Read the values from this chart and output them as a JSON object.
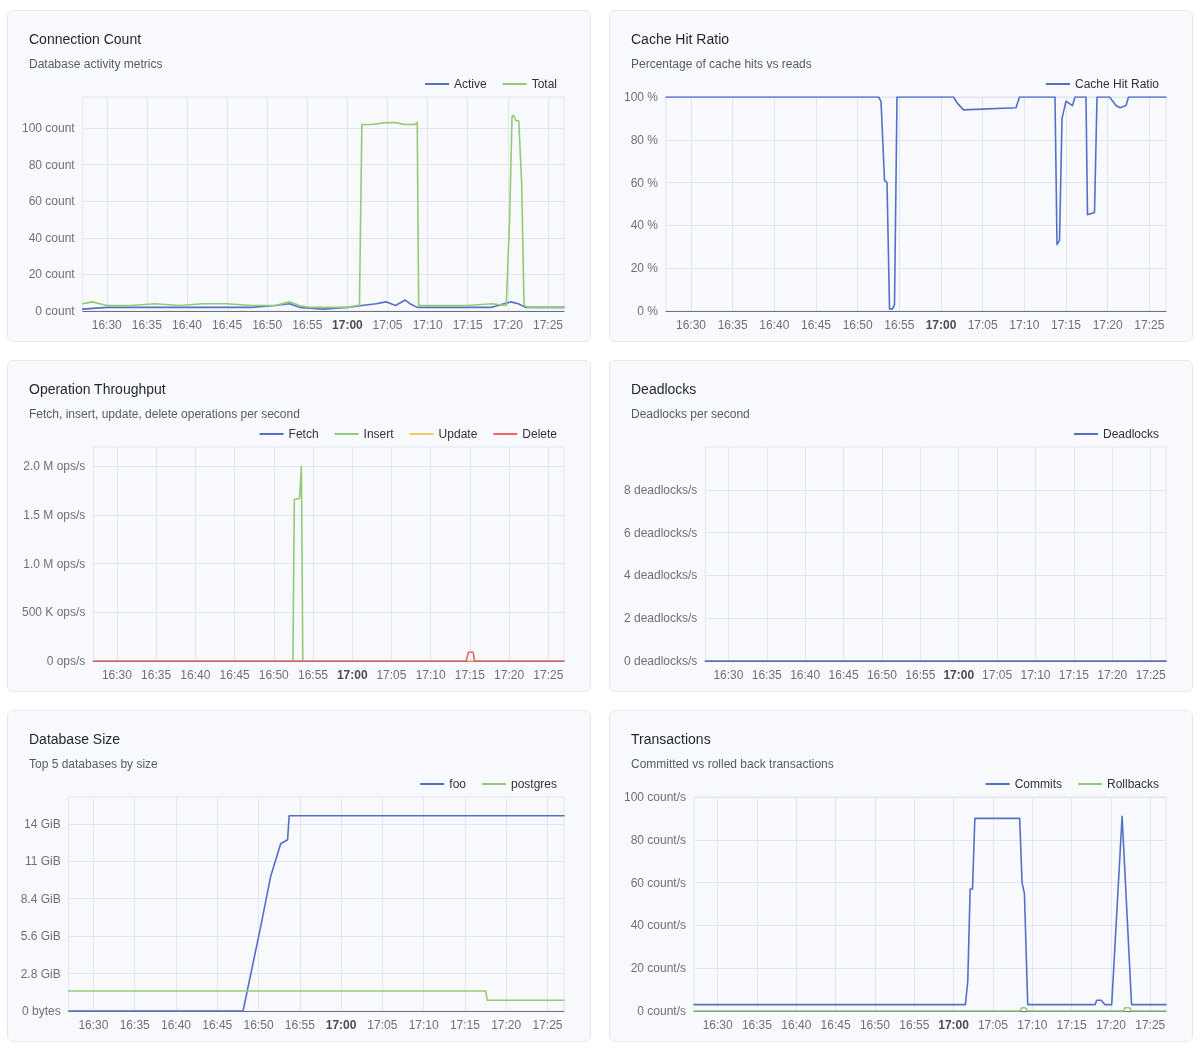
{
  "chart_data": [
    {
      "type": "line",
      "title": "Connection Count",
      "subtitle": "Database activity metrics",
      "legend": "top right",
      "grid": true,
      "xlim": [
        16.45,
        17.45
      ],
      "xticks": [
        {
          "value": 16.5,
          "label": "16:30"
        },
        {
          "value": 16.5833,
          "label": "16:35"
        },
        {
          "value": 16.6667,
          "label": "16:40"
        },
        {
          "value": 16.75,
          "label": "16:45"
        },
        {
          "value": 16.8333,
          "label": "16:50"
        },
        {
          "value": 16.9167,
          "label": "16:55"
        },
        {
          "value": 17,
          "label": "17:00"
        },
        {
          "value": 17.0833,
          "label": "17:05"
        },
        {
          "value": 17.1667,
          "label": "17:10"
        },
        {
          "value": 17.25,
          "label": "17:15"
        },
        {
          "value": 17.3333,
          "label": "17:20"
        },
        {
          "value": 17.4167,
          "label": "17:25"
        }
      ],
      "ylim": [
        0,
        117
      ],
      "yticks": [
        {
          "value": 0,
          "label": "0 count"
        },
        {
          "value": 20,
          "label": "20 count"
        },
        {
          "value": 40,
          "label": "40 count"
        },
        {
          "value": 60,
          "label": "60 count"
        },
        {
          "value": 80,
          "label": "80 count"
        },
        {
          "value": 100,
          "label": "100 count"
        }
      ],
      "series": [
        {
          "name": "Active",
          "color": "#5470c6",
          "x": [
            16.45,
            16.5,
            16.6,
            16.7,
            16.8,
            16.85,
            16.88,
            16.9,
            16.95,
            17.0,
            17.03,
            17.06,
            17.08,
            17.1,
            17.12,
            17.13,
            17.145,
            17.2,
            17.3,
            17.34,
            17.355,
            17.37,
            17.4,
            17.45
          ],
          "values": [
            1,
            2,
            2,
            2,
            2,
            3,
            4,
            2,
            1,
            2,
            3,
            4,
            5,
            3,
            6,
            4,
            2,
            2,
            2,
            5,
            4,
            2,
            2,
            2
          ]
        },
        {
          "name": "Total",
          "color": "#91cc75",
          "x": [
            16.45,
            16.47,
            16.5,
            16.55,
            16.6,
            16.65,
            16.7,
            16.75,
            16.8,
            16.85,
            16.88,
            16.9,
            16.92,
            16.95,
            17.0,
            17.02,
            17.025,
            17.03,
            17.05,
            17.08,
            17.1,
            17.12,
            17.14,
            17.145,
            17.148,
            17.2,
            17.25,
            17.3,
            17.33,
            17.337,
            17.342,
            17.345,
            17.35,
            17.356,
            17.362,
            17.367,
            17.375,
            17.4,
            17.45
          ],
          "values": [
            4,
            5,
            3,
            3,
            4,
            3,
            4,
            4,
            3,
            3,
            5,
            3,
            2,
            2,
            2,
            3,
            3,
            102,
            102,
            103,
            103,
            102,
            102,
            103,
            3,
            3,
            3,
            4,
            3,
            50,
            106,
            107,
            104,
            104,
            70,
            3,
            2,
            2,
            2
          ]
        }
      ]
    },
    {
      "type": "line",
      "title": "Cache Hit Ratio",
      "subtitle": "Percentage of cache hits vs reads",
      "legend": "top right",
      "grid": true,
      "xlim": [
        16.45,
        17.45
      ],
      "xticks": [
        {
          "value": 16.5,
          "label": "16:30"
        },
        {
          "value": 16.5833,
          "label": "16:35"
        },
        {
          "value": 16.6667,
          "label": "16:40"
        },
        {
          "value": 16.75,
          "label": "16:45"
        },
        {
          "value": 16.8333,
          "label": "16:50"
        },
        {
          "value": 16.9167,
          "label": "16:55"
        },
        {
          "value": 17,
          "label": "17:00"
        },
        {
          "value": 17.0833,
          "label": "17:05"
        },
        {
          "value": 17.1667,
          "label": "17:10"
        },
        {
          "value": 17.25,
          "label": "17:15"
        },
        {
          "value": 17.3333,
          "label": "17:20"
        },
        {
          "value": 17.4167,
          "label": "17:25"
        }
      ],
      "ylim": [
        0,
        100
      ],
      "yticks": [
        {
          "value": 0,
          "label": "0 %"
        },
        {
          "value": 20,
          "label": "20 %"
        },
        {
          "value": 40,
          "label": "40 %"
        },
        {
          "value": 60,
          "label": "60 %"
        },
        {
          "value": 80,
          "label": "80 %"
        },
        {
          "value": 100,
          "label": "100 %"
        }
      ],
      "series": [
        {
          "name": "Cache Hit Ratio",
          "color": "#5470c6",
          "x": [
            16.45,
            16.875,
            16.88,
            16.887,
            16.892,
            16.897,
            16.903,
            16.907,
            16.912,
            17.025,
            17.033,
            17.045,
            17.15,
            17.157,
            17.228,
            17.232,
            17.237,
            17.242,
            17.25,
            17.263,
            17.268,
            17.29,
            17.293,
            17.307,
            17.312,
            17.337,
            17.35,
            17.358,
            17.37,
            17.375,
            17.45
          ],
          "values": [
            100,
            100,
            98,
            61,
            60,
            1,
            1,
            3,
            100,
            100,
            97,
            94,
            95,
            100,
            100,
            31,
            33,
            90,
            98,
            96,
            100,
            100,
            45,
            46,
            100,
            100,
            96,
            95,
            96,
            100,
            100
          ]
        }
      ]
    },
    {
      "type": "line",
      "title": "Operation Throughput",
      "subtitle": "Fetch, insert, update, delete operations per second",
      "legend": "top right",
      "grid": true,
      "xlim": [
        16.45,
        17.45
      ],
      "xticks": [
        {
          "value": 16.5,
          "label": "16:30"
        },
        {
          "value": 16.5833,
          "label": "16:35"
        },
        {
          "value": 16.6667,
          "label": "16:40"
        },
        {
          "value": 16.75,
          "label": "16:45"
        },
        {
          "value": 16.8333,
          "label": "16:50"
        },
        {
          "value": 16.9167,
          "label": "16:55"
        },
        {
          "value": 17,
          "label": "17:00"
        },
        {
          "value": 17.0833,
          "label": "17:05"
        },
        {
          "value": 17.1667,
          "label": "17:10"
        },
        {
          "value": 17.25,
          "label": "17:15"
        },
        {
          "value": 17.3333,
          "label": "17:20"
        },
        {
          "value": 17.4167,
          "label": "17:25"
        }
      ],
      "ylim": [
        0,
        2200000
      ],
      "yticks": [
        {
          "value": 0,
          "label": "0 ops/s"
        },
        {
          "value": 500000,
          "label": "500 K ops/s"
        },
        {
          "value": 1000000,
          "label": "1.0 M ops/s"
        },
        {
          "value": 1500000,
          "label": "1.5 M ops/s"
        },
        {
          "value": 2000000,
          "label": "2.0 M ops/s"
        }
      ],
      "series": [
        {
          "name": "Fetch",
          "color": "#5470c6"
        },
        {
          "name": "Insert",
          "color": "#91cc75",
          "x": [
            16.874,
            16.877,
            16.888,
            16.892,
            16.895
          ],
          "values": [
            0,
            1660000,
            1670000,
            2000000,
            0
          ]
        },
        {
          "name": "Update",
          "color": "#fac858",
          "x": [
            17.247,
            17.257
          ],
          "values": [
            0,
            0
          ]
        },
        {
          "name": "Delete",
          "color": "#ee6666",
          "x": [
            16.45,
            17.242,
            17.247,
            17.257,
            17.26,
            17.45
          ],
          "values": [
            0,
            0,
            90000,
            90000,
            0,
            0
          ]
        }
      ]
    },
    {
      "type": "line",
      "title": "Deadlocks",
      "subtitle": "Deadlocks per second",
      "legend": "top right",
      "grid": true,
      "xlim": [
        16.45,
        17.45
      ],
      "xticks": [
        {
          "value": 16.5,
          "label": "16:30"
        },
        {
          "value": 16.5833,
          "label": "16:35"
        },
        {
          "value": 16.6667,
          "label": "16:40"
        },
        {
          "value": 16.75,
          "label": "16:45"
        },
        {
          "value": 16.8333,
          "label": "16:50"
        },
        {
          "value": 16.9167,
          "label": "16:55"
        },
        {
          "value": 17,
          "label": "17:00"
        },
        {
          "value": 17.0833,
          "label": "17:05"
        },
        {
          "value": 17.1667,
          "label": "17:10"
        },
        {
          "value": 17.25,
          "label": "17:15"
        },
        {
          "value": 17.3333,
          "label": "17:20"
        },
        {
          "value": 17.4167,
          "label": "17:25"
        }
      ],
      "ylim": [
        0,
        10
      ],
      "yticks": [
        {
          "value": 0,
          "label": "0 deadlocks/s"
        },
        {
          "value": 2,
          "label": "2 deadlocks/s"
        },
        {
          "value": 4,
          "label": "4 deadlocks/s"
        },
        {
          "value": 6,
          "label": "6 deadlocks/s"
        },
        {
          "value": 8,
          "label": "8 deadlocks/s"
        }
      ],
      "series": [
        {
          "name": "Deadlocks",
          "color": "#5470c6",
          "x": [
            16.45,
            17.45
          ],
          "values": [
            0,
            0
          ]
        }
      ]
    },
    {
      "type": "line",
      "title": "Database Size",
      "subtitle": "Top 5 databases by size",
      "legend": "top right",
      "grid": true,
      "xlim": [
        16.45,
        17.45
      ],
      "xticks": [
        {
          "value": 16.5,
          "label": "16:30"
        },
        {
          "value": 16.5833,
          "label": "16:35"
        },
        {
          "value": 16.6667,
          "label": "16:40"
        },
        {
          "value": 16.75,
          "label": "16:45"
        },
        {
          "value": 16.8333,
          "label": "16:50"
        },
        {
          "value": 16.9167,
          "label": "16:55"
        },
        {
          "value": 17,
          "label": "17:00"
        },
        {
          "value": 17.0833,
          "label": "17:05"
        },
        {
          "value": 17.1667,
          "label": "17:10"
        },
        {
          "value": 17.25,
          "label": "17:15"
        },
        {
          "value": 17.3333,
          "label": "17:20"
        },
        {
          "value": 17.4167,
          "label": "17:25"
        }
      ],
      "ylim": [
        0,
        16
      ],
      "yticks": [
        {
          "value": 0,
          "label": "0 bytes"
        },
        {
          "value": 2.8,
          "label": "2.8 GiB"
        },
        {
          "value": 5.6,
          "label": "5.6 GiB"
        },
        {
          "value": 8.4,
          "label": "8.4 GiB"
        },
        {
          "value": 11.2,
          "label": "11 GiB"
        },
        {
          "value": 14,
          "label": "14 GiB"
        }
      ],
      "series": [
        {
          "name": "foo",
          "color": "#5470c6",
          "x": [
            16.45,
            16.802,
            16.837,
            16.858,
            16.878,
            16.892,
            16.895,
            17.45
          ],
          "values": [
            0,
            0,
            6.2,
            10.1,
            12.5,
            12.8,
            14.6,
            14.6
          ]
        },
        {
          "name": "postgres",
          "color": "#91cc75",
          "x": [
            16.45,
            17.292,
            17.295,
            17.45
          ],
          "values": [
            1.5,
            1.5,
            0.8,
            0.8
          ]
        }
      ]
    },
    {
      "type": "line",
      "title": "Transactions",
      "subtitle": "Committed vs rolled back transactions",
      "legend": "top right",
      "grid": true,
      "xlim": [
        16.45,
        17.45
      ],
      "xticks": [
        {
          "value": 16.5,
          "label": "16:30"
        },
        {
          "value": 16.5833,
          "label": "16:35"
        },
        {
          "value": 16.6667,
          "label": "16:40"
        },
        {
          "value": 16.75,
          "label": "16:45"
        },
        {
          "value": 16.8333,
          "label": "16:50"
        },
        {
          "value": 16.9167,
          "label": "16:55"
        },
        {
          "value": 17,
          "label": "17:00"
        },
        {
          "value": 17.0833,
          "label": "17:05"
        },
        {
          "value": 17.1667,
          "label": "17:10"
        },
        {
          "value": 17.25,
          "label": "17:15"
        },
        {
          "value": 17.3333,
          "label": "17:20"
        },
        {
          "value": 17.4167,
          "label": "17:25"
        }
      ],
      "ylim": [
        0,
        100
      ],
      "yticks": [
        {
          "value": 0,
          "label": "0 count/s"
        },
        {
          "value": 20,
          "label": "20 count/s"
        },
        {
          "value": 40,
          "label": "40 count/s"
        },
        {
          "value": 60,
          "label": "60 count/s"
        },
        {
          "value": 80,
          "label": "80 count/s"
        },
        {
          "value": 100,
          "label": "100 count/s"
        }
      ],
      "series": [
        {
          "name": "Commits",
          "color": "#5470c6",
          "x": [
            16.45,
            17.025,
            17.03,
            17.035,
            17.04,
            17.045,
            17.14,
            17.145,
            17.15,
            17.157,
            17.3,
            17.303,
            17.313,
            17.32,
            17.335,
            17.357,
            17.377,
            17.45
          ],
          "values": [
            3,
            3,
            14,
            57,
            57,
            90,
            90,
            60,
            55,
            3,
            3,
            5,
            5,
            3,
            3,
            91,
            3,
            3
          ]
        },
        {
          "name": "Rollbacks",
          "color": "#91cc75",
          "x": [
            16.45,
            17.14,
            17.145,
            17.152,
            17.157,
            17.36,
            17.363,
            17.373,
            17.377,
            17.45
          ],
          "values": [
            0,
            0,
            1.5,
            1.5,
            0,
            0,
            1.5,
            1.5,
            0,
            0
          ]
        }
      ]
    }
  ]
}
